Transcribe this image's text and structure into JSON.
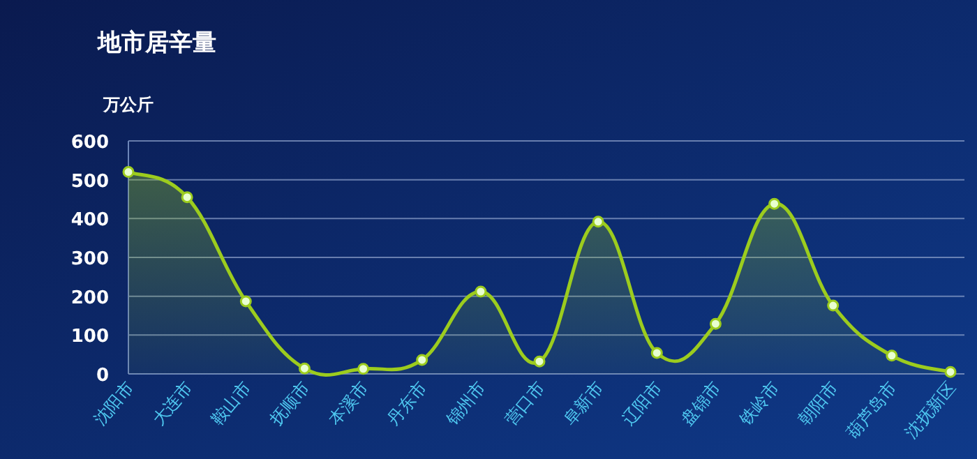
{
  "chart_data": {
    "type": "area",
    "title": "地市居辛量",
    "ylabel": "万公斤",
    "categories": [
      "沈阳市",
      "大连市",
      "鞍山市",
      "抚顺市",
      "本溪市",
      "丹东市",
      "锦州市",
      "营口市",
      "阜新市",
      "辽阳市",
      "盘锦市",
      "铁岭市",
      "朝阳市",
      "葫芦岛市",
      "沈抚新区"
    ],
    "series": [
      {
        "color": "#9ccc1e",
        "values": [
          520,
          455,
          187,
          14,
          13,
          36,
          212,
          32,
          392,
          54,
          129,
          438,
          176,
          47,
          5
        ]
      }
    ],
    "ylim": [
      0,
      600
    ],
    "yticks": [
      0,
      100,
      200,
      300,
      400,
      500,
      600
    ],
    "grid": "y",
    "marker": "circle"
  }
}
